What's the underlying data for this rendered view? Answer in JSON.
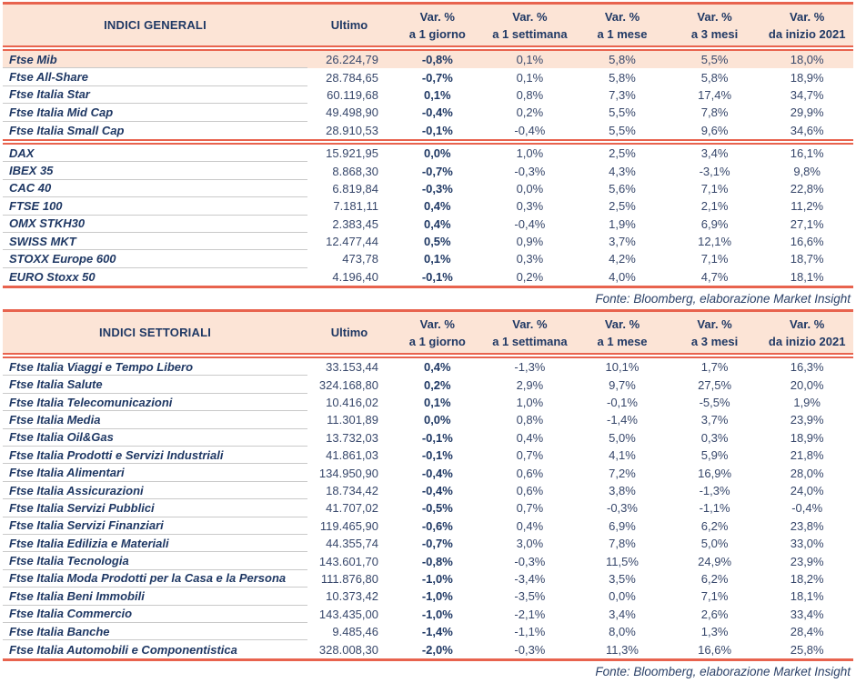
{
  "colors": {
    "accent_coral": "#E8634E",
    "header_peach": "#FCE4D6",
    "text_navy": "#1F3864",
    "row_separator_gray": "#C9C9C9"
  },
  "headers": {
    "ultimo": "Ultimo",
    "vars": [
      {
        "line1": "Var. %",
        "line2": "a 1 giorno"
      },
      {
        "line1": "Var. %",
        "line2": "a 1 settimana"
      },
      {
        "line1": "Var. %",
        "line2": "a 1 mese"
      },
      {
        "line1": "Var. %",
        "line2": "a 3 mesi"
      },
      {
        "line1": "Var. %",
        "line2": "da inizio 2021"
      }
    ]
  },
  "table_general": {
    "title": "INDICI GENERALI",
    "fonte": "Fonte: Bloomberg, elaborazione Market Insight",
    "rows_italy": [
      {
        "name": "Ftse Mib",
        "ultimo": "26.224,79",
        "d1": "-0,8%",
        "w1": "0,1%",
        "m1": "5,8%",
        "m3": "5,5%",
        "ytd": "18,0%",
        "highlight": true
      },
      {
        "name": "Ftse All-Share",
        "ultimo": "28.784,65",
        "d1": "-0,7%",
        "w1": "0,1%",
        "m1": "5,8%",
        "m3": "5,8%",
        "ytd": "18,9%"
      },
      {
        "name": "Ftse Italia Star",
        "ultimo": "60.119,68",
        "d1": "0,1%",
        "w1": "0,8%",
        "m1": "7,3%",
        "m3": "17,4%",
        "ytd": "34,7%"
      },
      {
        "name": "Ftse Italia Mid Cap",
        "ultimo": "49.498,90",
        "d1": "-0,4%",
        "w1": "0,2%",
        "m1": "5,5%",
        "m3": "7,8%",
        "ytd": "29,9%"
      },
      {
        "name": "Ftse Italia Small Cap",
        "ultimo": "28.910,53",
        "d1": "-0,1%",
        "w1": "-0,4%",
        "m1": "5,5%",
        "m3": "9,6%",
        "ytd": "34,6%"
      }
    ],
    "rows_international": [
      {
        "name": "DAX",
        "ultimo": "15.921,95",
        "d1": "0,0%",
        "w1": "1,0%",
        "m1": "2,5%",
        "m3": "3,4%",
        "ytd": "16,1%"
      },
      {
        "name": "IBEX 35",
        "ultimo": "8.868,30",
        "d1": "-0,7%",
        "w1": "-0,3%",
        "m1": "4,3%",
        "m3": "-3,1%",
        "ytd": "9,8%"
      },
      {
        "name": "CAC 40",
        "ultimo": "6.819,84",
        "d1": "-0,3%",
        "w1": "0,0%",
        "m1": "5,6%",
        "m3": "7,1%",
        "ytd": "22,8%"
      },
      {
        "name": "FTSE 100",
        "ultimo": "7.181,11",
        "d1": "0,4%",
        "w1": "0,3%",
        "m1": "2,5%",
        "m3": "2,1%",
        "ytd": "11,2%"
      },
      {
        "name": "OMX STKH30",
        "ultimo": "2.383,45",
        "d1": "0,4%",
        "w1": "-0,4%",
        "m1": "1,9%",
        "m3": "6,9%",
        "ytd": "27,1%"
      },
      {
        "name": "SWISS MKT",
        "ultimo": "12.477,44",
        "d1": "0,5%",
        "w1": "0,9%",
        "m1": "3,7%",
        "m3": "12,1%",
        "ytd": "16,6%"
      },
      {
        "name": "STOXX Europe 600",
        "ultimo": "473,78",
        "d1": "0,1%",
        "w1": "0,3%",
        "m1": "4,2%",
        "m3": "7,1%",
        "ytd": "18,7%"
      },
      {
        "name": "EURO Stoxx 50",
        "ultimo": "4.196,40",
        "d1": "-0,1%",
        "w1": "0,2%",
        "m1": "4,0%",
        "m3": "4,7%",
        "ytd": "18,1%"
      }
    ]
  },
  "table_sector": {
    "title": "INDICI SETTORIALI",
    "fonte": "Fonte: Bloomberg, elaborazione Market Insight",
    "rows": [
      {
        "name": "Ftse Italia Viaggi e Tempo Libero",
        "ultimo": "33.153,44",
        "d1": "0,4%",
        "w1": "-1,3%",
        "m1": "10,1%",
        "m3": "1,7%",
        "ytd": "16,3%"
      },
      {
        "name": "Ftse Italia Salute",
        "ultimo": "324.168,80",
        "d1": "0,2%",
        "w1": "2,9%",
        "m1": "9,7%",
        "m3": "27,5%",
        "ytd": "20,0%"
      },
      {
        "name": "Ftse Italia Telecomunicazioni",
        "ultimo": "10.416,02",
        "d1": "0,1%",
        "w1": "1,0%",
        "m1": "-0,1%",
        "m3": "-5,5%",
        "ytd": "1,9%"
      },
      {
        "name": "Ftse Italia Media",
        "ultimo": "11.301,89",
        "d1": "0,0%",
        "w1": "0,8%",
        "m1": "-1,4%",
        "m3": "3,7%",
        "ytd": "23,9%"
      },
      {
        "name": "Ftse Italia Oil&Gas",
        "ultimo": "13.732,03",
        "d1": "-0,1%",
        "w1": "0,4%",
        "m1": "5,0%",
        "m3": "0,3%",
        "ytd": "18,9%"
      },
      {
        "name": "Ftse Italia Prodotti e Servizi Industriali",
        "ultimo": "41.861,03",
        "d1": "-0,1%",
        "w1": "0,7%",
        "m1": "4,1%",
        "m3": "5,9%",
        "ytd": "21,8%"
      },
      {
        "name": "Ftse Italia Alimentari",
        "ultimo": "134.950,90",
        "d1": "-0,4%",
        "w1": "0,6%",
        "m1": "7,2%",
        "m3": "16,9%",
        "ytd": "28,0%"
      },
      {
        "name": "Ftse Italia Assicurazioni",
        "ultimo": "18.734,42",
        "d1": "-0,4%",
        "w1": "0,6%",
        "m1": "3,8%",
        "m3": "-1,3%",
        "ytd": "24,0%"
      },
      {
        "name": "Ftse Italia Servizi Pubblici",
        "ultimo": "41.707,02",
        "d1": "-0,5%",
        "w1": "0,7%",
        "m1": "-0,3%",
        "m3": "-1,1%",
        "ytd": "-0,4%"
      },
      {
        "name": "Ftse Italia Servizi Finanziari",
        "ultimo": "119.465,90",
        "d1": "-0,6%",
        "w1": "0,4%",
        "m1": "6,9%",
        "m3": "6,2%",
        "ytd": "23,8%"
      },
      {
        "name": "Ftse Italia Edilizia e Materiali",
        "ultimo": "44.355,74",
        "d1": "-0,7%",
        "w1": "3,0%",
        "m1": "7,8%",
        "m3": "5,0%",
        "ytd": "33,0%"
      },
      {
        "name": "Ftse Italia Tecnologia",
        "ultimo": "143.601,70",
        "d1": "-0,8%",
        "w1": "-0,3%",
        "m1": "11,5%",
        "m3": "24,9%",
        "ytd": "23,9%"
      },
      {
        "name": "Ftse Italia Moda Prodotti per la Casa e la Persona",
        "ultimo": "111.876,80",
        "d1": "-1,0%",
        "w1": "-3,4%",
        "m1": "3,5%",
        "m3": "6,2%",
        "ytd": "18,2%"
      },
      {
        "name": "Ftse Italia Beni Immobili",
        "ultimo": "10.373,42",
        "d1": "-1,0%",
        "w1": "-3,5%",
        "m1": "0,0%",
        "m3": "7,1%",
        "ytd": "18,1%"
      },
      {
        "name": "Ftse Italia Commercio",
        "ultimo": "143.435,00",
        "d1": "-1,0%",
        "w1": "-2,1%",
        "m1": "3,4%",
        "m3": "2,6%",
        "ytd": "33,4%"
      },
      {
        "name": "Ftse Italia Banche",
        "ultimo": "9.485,46",
        "d1": "-1,4%",
        "w1": "-1,1%",
        "m1": "8,0%",
        "m3": "1,3%",
        "ytd": "28,4%"
      },
      {
        "name": "Ftse Italia Automobili e Componentistica",
        "ultimo": "328.008,30",
        "d1": "-2,0%",
        "w1": "-0,3%",
        "m1": "11,3%",
        "m3": "16,6%",
        "ytd": "25,8%"
      }
    ]
  }
}
